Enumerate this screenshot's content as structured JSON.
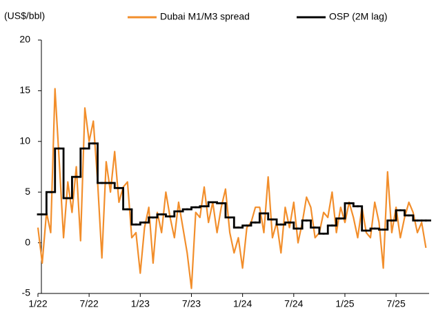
{
  "chart_data": {
    "type": "line",
    "y_unit_label": "(US$/bbl)",
    "categories": [
      "1/22",
      null,
      null,
      null,
      null,
      null,
      null,
      null,
      null,
      null,
      null,
      null,
      "7/22",
      null,
      null,
      null,
      null,
      null,
      null,
      null,
      null,
      null,
      null,
      null,
      "1/23",
      null,
      null,
      null,
      null,
      null,
      null,
      null,
      null,
      null,
      null,
      null,
      "7/23",
      null,
      null,
      null,
      null,
      null,
      null,
      null,
      null,
      null,
      null,
      null,
      "1/24",
      null,
      null,
      null,
      null,
      null,
      null,
      null,
      null,
      null,
      null,
      null,
      "7/24",
      null,
      null,
      null,
      null,
      null,
      null,
      null,
      null,
      null,
      null,
      null,
      "1/25",
      null,
      null,
      null,
      null,
      null,
      null,
      null,
      null,
      null,
      null,
      null,
      "7/25",
      null,
      null,
      null,
      null,
      null,
      null,
      null
    ],
    "series": [
      {
        "name": "Dubai M1/M3 spread",
        "color": "#f28e2b",
        "style": "line",
        "values": [
          1.5,
          -2.0,
          3.0,
          1.0,
          15.2,
          8.0,
          0.5,
          6.0,
          3.0,
          7.5,
          0.2,
          13.3,
          10.0,
          12.0,
          6.0,
          -1.5,
          8.0,
          5.0,
          9.0,
          4.0,
          5.5,
          6.0,
          0.5,
          1.0,
          -3.0,
          1.5,
          3.5,
          -2.0,
          3.0,
          1.0,
          5.0,
          2.5,
          0.5,
          4.0,
          1.5,
          -1.0,
          -4.5,
          3.0,
          2.5,
          5.5,
          2.0,
          4.0,
          1.0,
          3.5,
          5.3,
          1.0,
          -1.0,
          0.5,
          -2.5,
          1.5,
          2.0,
          3.5,
          3.5,
          1.0,
          6.5,
          0.5,
          2.0,
          -1.0,
          3.5,
          1.5,
          4.0,
          0.0,
          2.0,
          4.5,
          3.5,
          0.5,
          1.0,
          3.0,
          2.5,
          5.0,
          1.0,
          3.5,
          2.0,
          4.0,
          2.5,
          0.5,
          3.5,
          1.0,
          0.5,
          4.0,
          2.0,
          -2.5,
          7.0,
          1.0,
          3.5,
          0.5,
          2.5,
          4.0,
          3.0,
          1.0,
          2.0,
          -0.5
        ]
      },
      {
        "name": "OSP (2M lag)",
        "color": "#000000",
        "style": "step",
        "values": [
          2.8,
          2.8,
          5.0,
          5.0,
          9.3,
          9.3,
          4.4,
          4.4,
          6.5,
          6.5,
          9.3,
          9.3,
          9.8,
          9.8,
          5.9,
          5.9,
          5.9,
          5.9,
          5.4,
          5.4,
          3.3,
          3.3,
          1.8,
          1.8,
          2.0,
          2.0,
          2.5,
          2.5,
          2.8,
          2.8,
          2.6,
          2.6,
          3.1,
          3.1,
          3.3,
          3.3,
          3.5,
          3.5,
          3.6,
          3.6,
          4.0,
          4.0,
          3.9,
          3.9,
          2.5,
          2.5,
          1.5,
          1.5,
          1.7,
          1.7,
          2.0,
          2.0,
          2.9,
          2.9,
          2.3,
          2.3,
          1.8,
          1.8,
          2.0,
          2.0,
          1.4,
          1.4,
          2.2,
          2.2,
          1.5,
          1.5,
          0.9,
          0.9,
          1.7,
          1.7,
          2.4,
          2.4,
          3.9,
          3.9,
          3.6,
          3.6,
          1.2,
          1.2,
          1.4,
          1.4,
          1.3,
          1.3,
          2.2,
          2.2,
          3.2,
          3.2,
          2.7,
          2.7,
          2.2,
          2.2,
          2.2,
          2.2
        ]
      }
    ],
    "ylim": [
      -5,
      20
    ],
    "yticks": [
      -5,
      0,
      5,
      10,
      15,
      20
    ],
    "grid": false,
    "legend": "top"
  }
}
